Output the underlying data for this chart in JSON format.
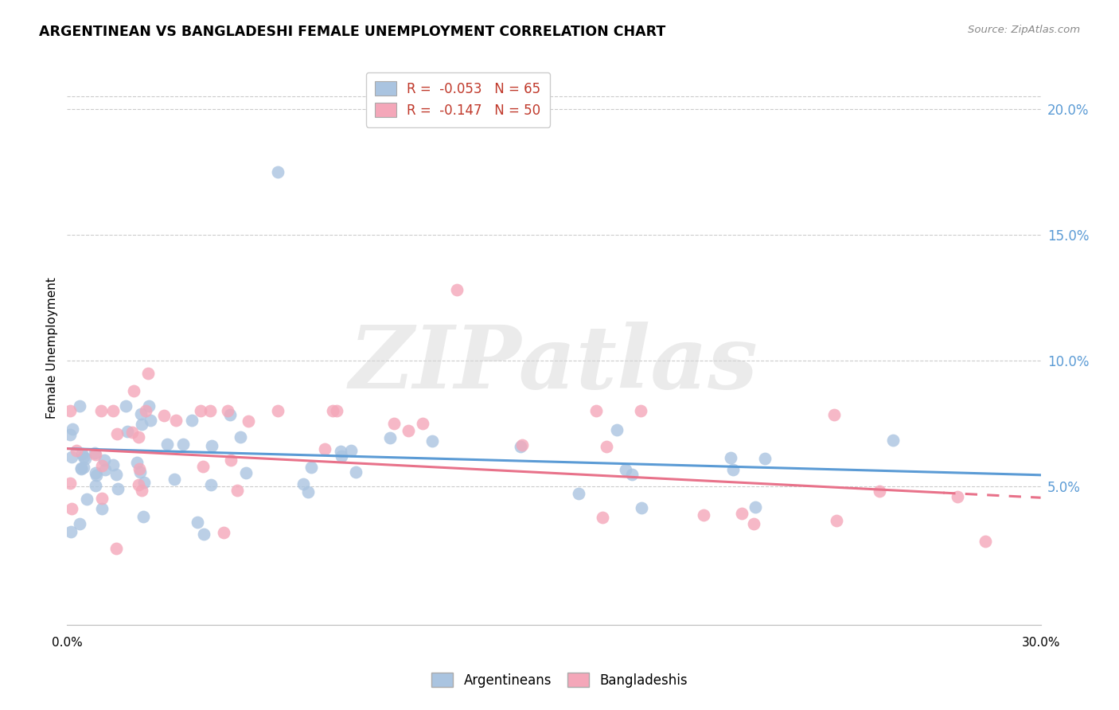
{
  "title": "ARGENTINEAN VS BANGLADESHI FEMALE UNEMPLOYMENT CORRELATION CHART",
  "source": "Source: ZipAtlas.com",
  "ylabel": "Female Unemployment",
  "right_yticks": [
    0.2,
    0.15,
    0.1,
    0.05
  ],
  "right_ytick_labels": [
    "20.0%",
    "15.0%",
    "10.0%",
    "5.0%"
  ],
  "xlim": [
    0.0,
    0.3
  ],
  "ylim": [
    -0.005,
    0.215
  ],
  "arg_R": -0.053,
  "arg_N": 65,
  "ban_R": -0.147,
  "ban_N": 50,
  "arg_color": "#aac4e0",
  "ban_color": "#f4a7b9",
  "arg_line_color": "#5b9bd5",
  "ban_line_color": "#e8728a",
  "watermark_color": "#d8d8d8",
  "legend_text_color": "#c0392b",
  "right_axis_color": "#5b9bd5",
  "arg_scatter_seed": 42,
  "ban_scatter_seed": 99
}
